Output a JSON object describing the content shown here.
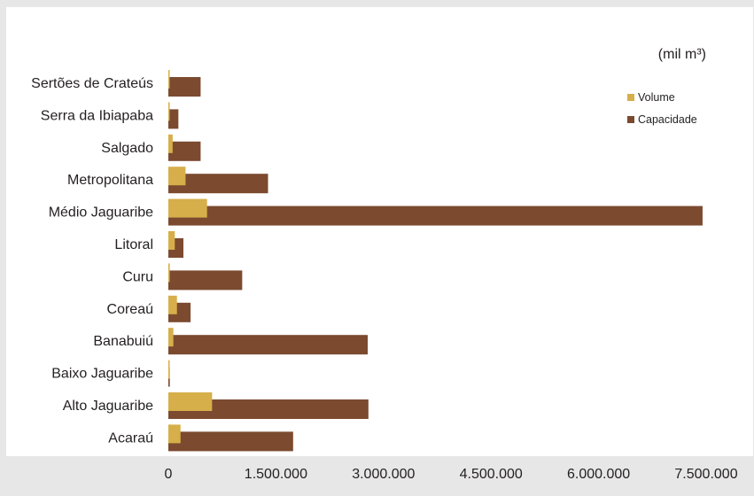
{
  "chart_data": {
    "type": "bar",
    "orientation": "horizontal",
    "unit_label": "(mil m³)",
    "categories": [
      "Sertões de Crateús",
      "Serra da Ibiapaba",
      "Salgado",
      "Metropolitana",
      "Médio Jaguaribe",
      "Litoral",
      "Curu",
      "Coreaú",
      "Banabuiú",
      "Baixo Jaguaribe",
      "Alto Jaguaribe",
      "Acaraú"
    ],
    "series": [
      {
        "name": "Volume",
        "color": "#d6af4a",
        "values": [
          10000,
          15000,
          60000,
          240000,
          540000,
          90000,
          20000,
          120000,
          70000,
          5000,
          610000,
          170000
        ]
      },
      {
        "name": "Capacidade",
        "color": "#7b4a2f",
        "values": [
          450000,
          140000,
          450000,
          1390000,
          7450000,
          210000,
          1030000,
          310000,
          2780000,
          20000,
          2790000,
          1740000
        ]
      }
    ],
    "xlim": [
      0,
      7500000
    ],
    "xticks": [
      {
        "value": 0,
        "label": "0"
      },
      {
        "value": 1500000,
        "label": "1.500.000"
      },
      {
        "value": 3000000,
        "label": "3.000.000"
      },
      {
        "value": 4500000,
        "label": "4.500.000"
      },
      {
        "value": 6000000,
        "label": "6.000.000"
      },
      {
        "value": 7500000,
        "label": "7.500.000"
      }
    ],
    "grid": false,
    "legend_position": "top-right"
  }
}
